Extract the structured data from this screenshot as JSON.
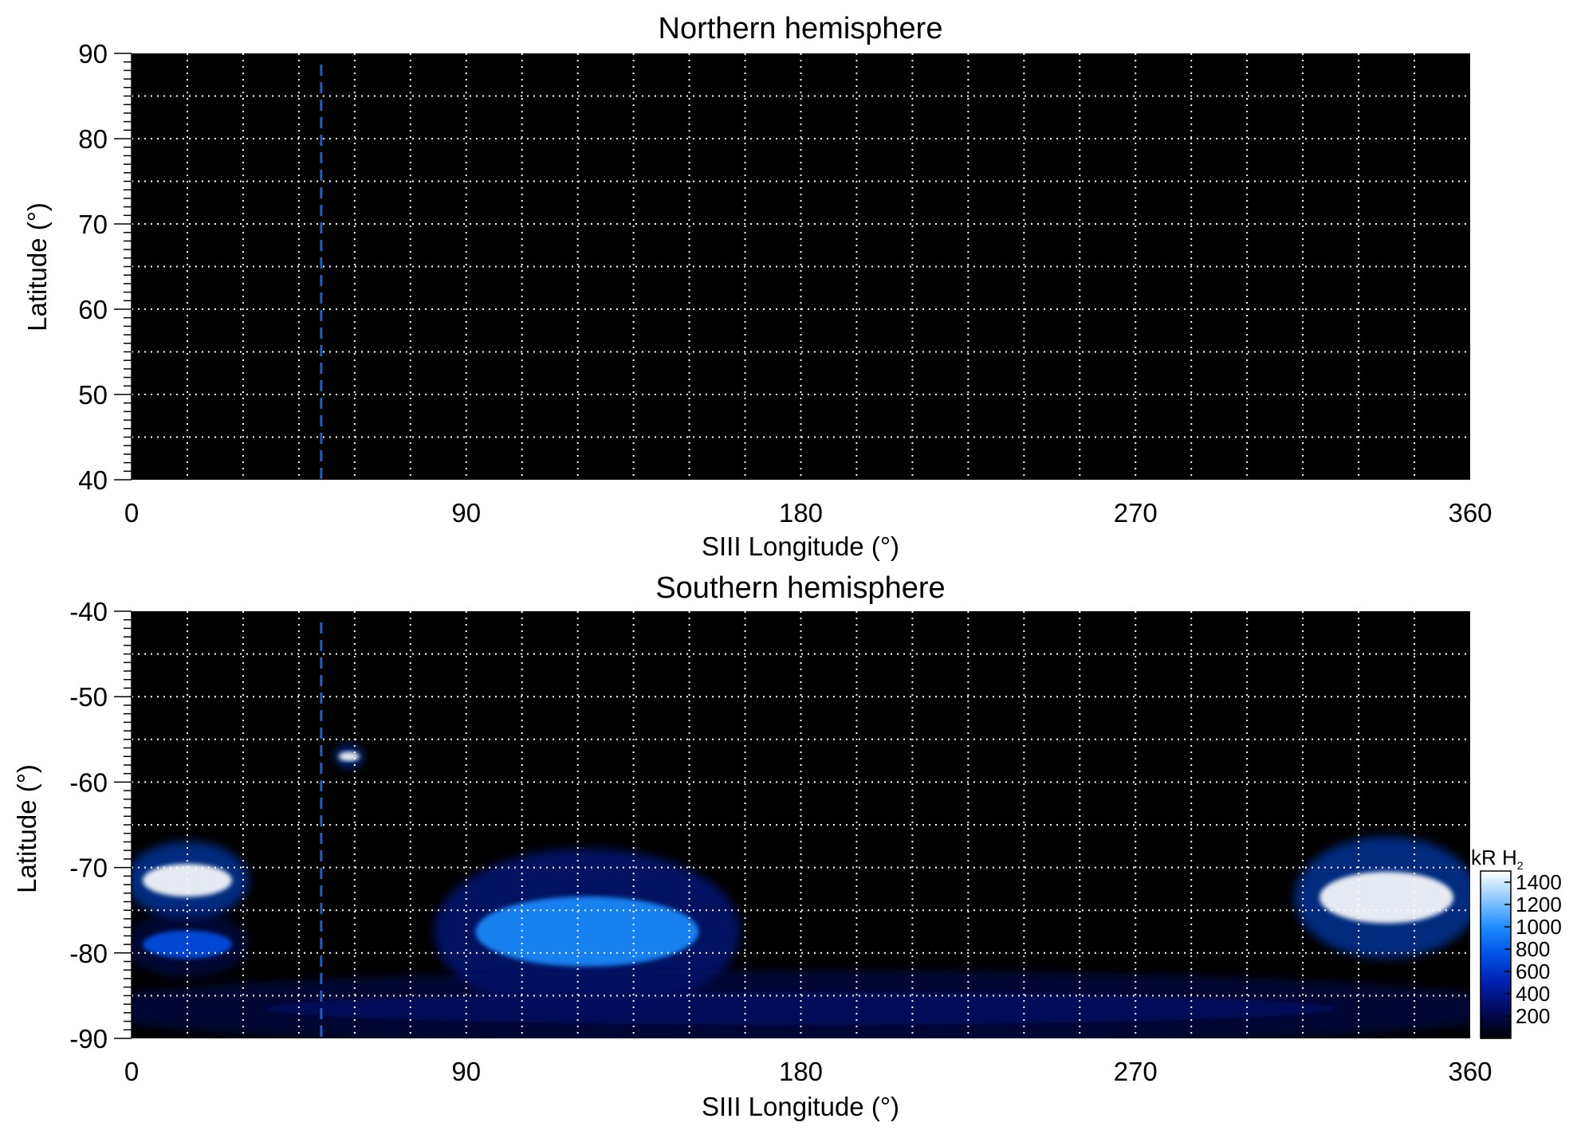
{
  "chart_data": [
    {
      "type": "heatmap",
      "title": "Northern hemisphere",
      "xlabel": "SIII Longitude (°)",
      "ylabel": "Latitude (°)",
      "xlim": [
        0,
        360
      ],
      "ylim": [
        40,
        90
      ],
      "x_ticks": [
        "0",
        "90",
        "180",
        "270",
        "360"
      ],
      "y_ticks": [
        "40",
        "50",
        "60",
        "70",
        "80",
        "90"
      ],
      "grid": true,
      "grid_x_step": 15,
      "grid_y_step": 5,
      "reference_longitude": 51,
      "background": "#000000",
      "emission": []
    },
    {
      "type": "heatmap",
      "title": "Southern hemisphere",
      "xlabel": "SIII Longitude (°)",
      "ylabel": "Latitude (°)",
      "xlim": [
        0,
        360
      ],
      "ylim": [
        -90,
        -40
      ],
      "x_ticks": [
        "0",
        "90",
        "180",
        "270",
        "360"
      ],
      "y_ticks": [
        "-40",
        "-50",
        "-60",
        "-70",
        "-80",
        "-90"
      ],
      "grid": true,
      "grid_x_step": 15,
      "grid_y_step": 5,
      "reference_longitude": 51,
      "background": "#000000",
      "emission": [
        {
          "region": "arc-0-30",
          "lon": [
            0,
            30
          ],
          "lat": [
            -75,
            -68
          ],
          "peak_kR": 1400
        },
        {
          "region": "band-0-30-lower",
          "lon": [
            0,
            30
          ],
          "lat": [
            -82,
            -76
          ],
          "peak_kR": 700
        },
        {
          "region": "spot-58",
          "lon": [
            55,
            62
          ],
          "lat": [
            -58,
            -56
          ],
          "peak_kR": 1400
        },
        {
          "region": "arc-85-160",
          "lon": [
            85,
            160
          ],
          "lat": [
            -85,
            -70
          ],
          "peak_kR": 1000
        },
        {
          "region": "arc-315-360",
          "lon": [
            315,
            360
          ],
          "lat": [
            -79,
            -68
          ],
          "peak_kR": 1400
        },
        {
          "region": "diffuse-low",
          "lon": [
            0,
            360
          ],
          "lat": [
            -90,
            -83
          ],
          "peak_kR": 300
        }
      ],
      "colorbar": {
        "label": "kR H",
        "label_subscript": "2",
        "ticks": [
          "1400",
          "1200",
          "1000",
          "800",
          "600",
          "400",
          "200"
        ],
        "range": [
          0,
          1500
        ],
        "colors": [
          "#000000",
          "#000a5c",
          "#0020b0",
          "#0050e6",
          "#1f8cff",
          "#8ec8ff",
          "#ffffff"
        ]
      }
    }
  ]
}
